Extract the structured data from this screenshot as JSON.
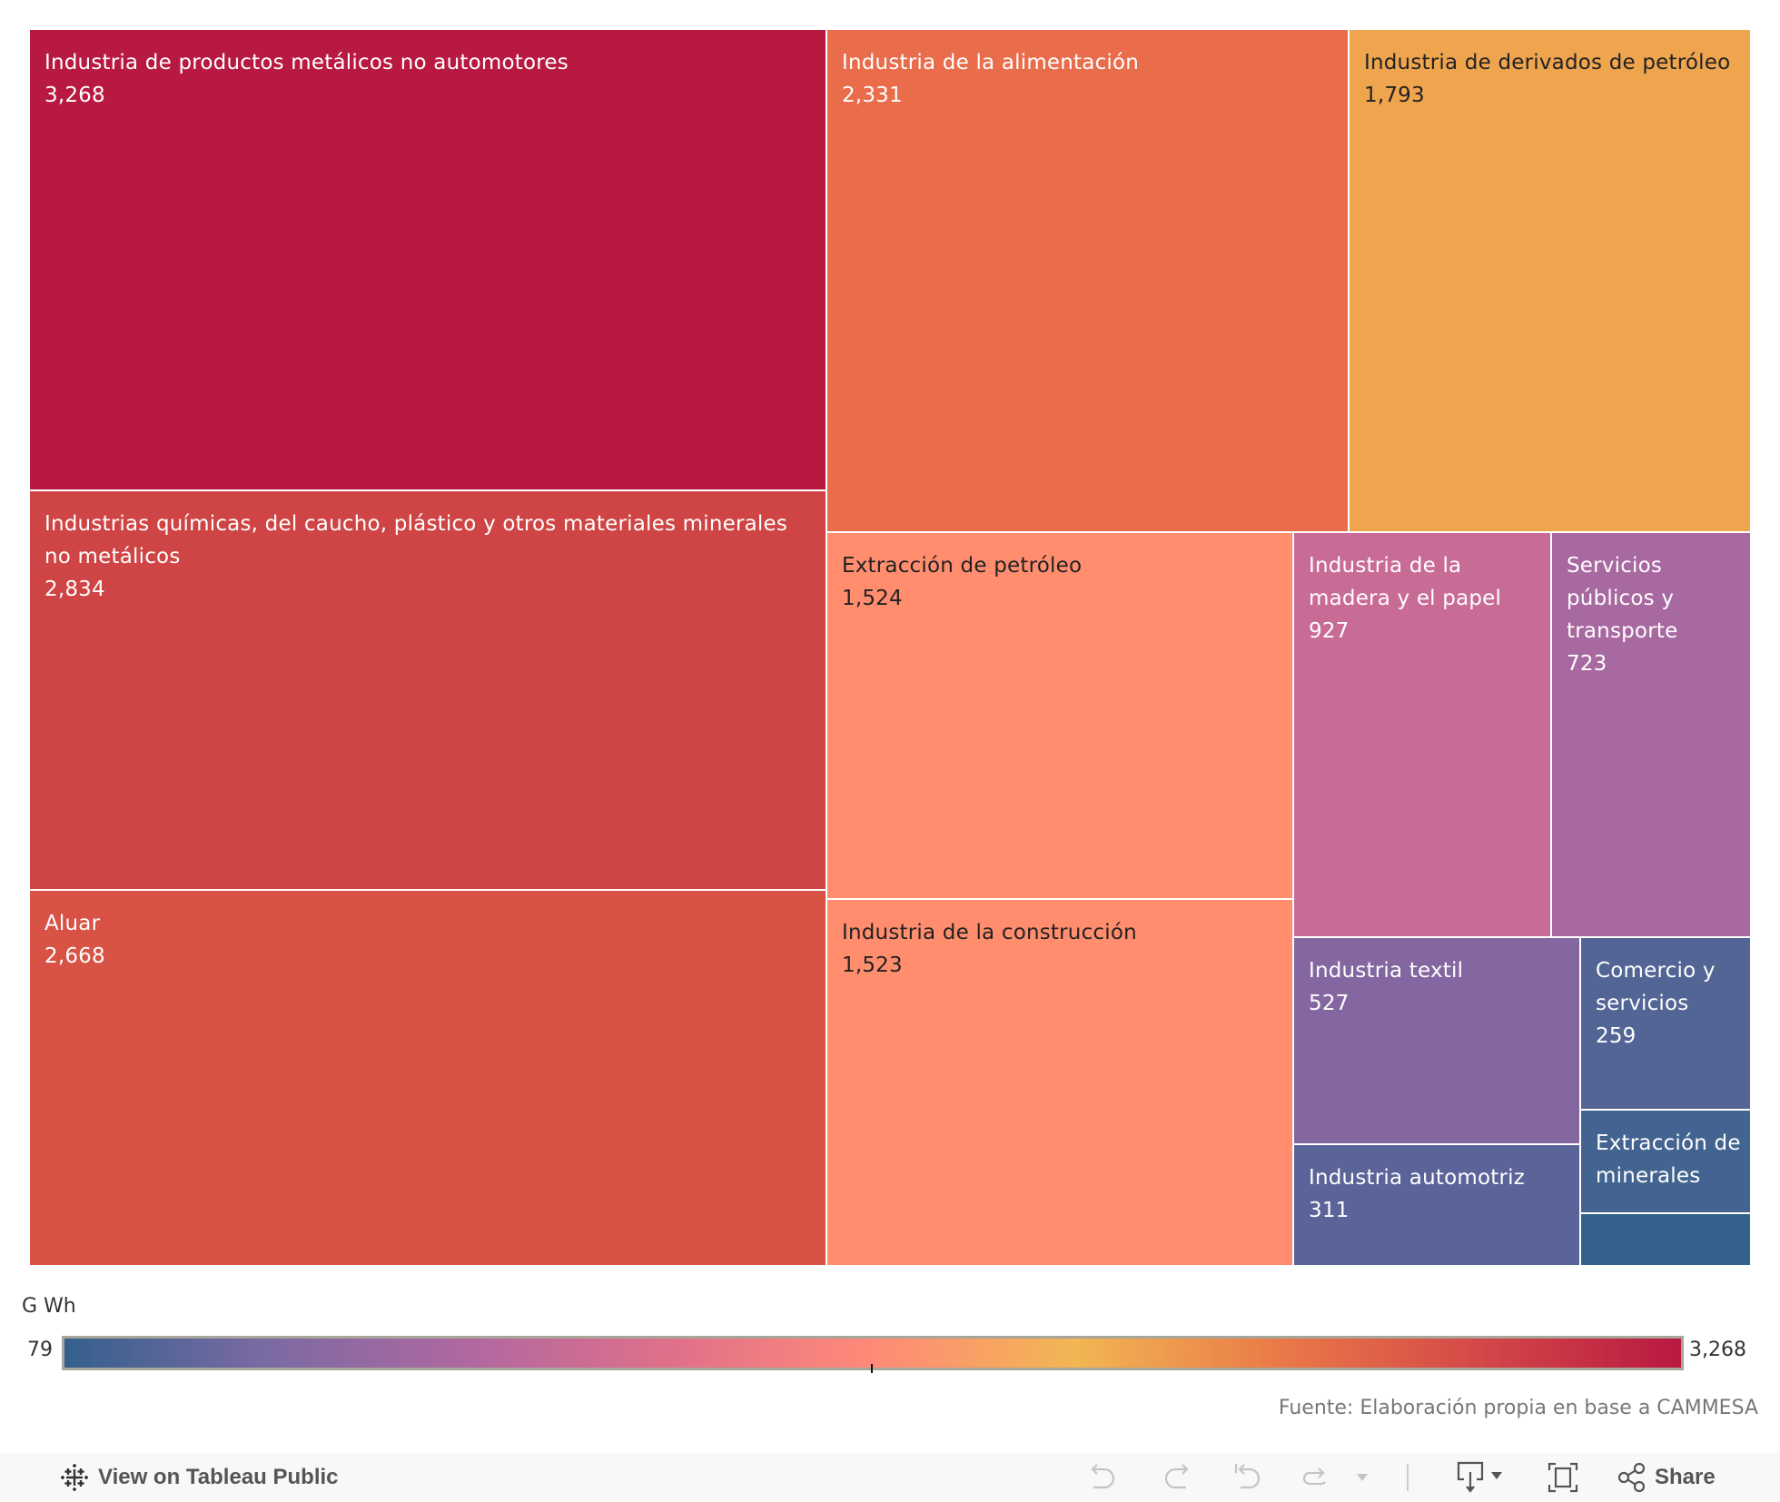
{
  "chart_data": {
    "type": "treemap",
    "title": "",
    "measure": "G Wh",
    "items": [
      {
        "label": "Industria de productos metálicos no automotores",
        "value": 3268,
        "display": "3,268",
        "color": "#b81941",
        "text_color": "#ffffff"
      },
      {
        "label": "Industrias químicas, del caucho, plástico y otros materiales minerales no metálicos",
        "value": 2834,
        "display": "2,834",
        "color": "#cf4444",
        "text_color": "#ffffff"
      },
      {
        "label": "Aluar",
        "value": 2668,
        "display": "2,668",
        "color": "#d85246",
        "text_color": "#ffffff"
      },
      {
        "label": "Industria de la alimentación",
        "value": 2331,
        "display": "2,331",
        "color": "#e96c4b",
        "text_color": "#ffffff"
      },
      {
        "label": "Industria de derivados de petróleo",
        "value": 1793,
        "display": "1,793",
        "color": "#efa44e",
        "text_color": "#222222"
      },
      {
        "label": "Extracción de petróleo",
        "value": 1524,
        "display": "1,524",
        "color": "#ff8d6e",
        "text_color": "#222222"
      },
      {
        "label": "Industria de la construcción",
        "value": 1523,
        "display": "1,523",
        "color": "#ff8d6e",
        "text_color": "#222222"
      },
      {
        "label": "Industria de la madera y el papel",
        "value": 927,
        "display": "927",
        "color": "#c96b97",
        "text_color": "#ffffff"
      },
      {
        "label": "Servicios públicos y transporte",
        "value": 723,
        "display": "723",
        "color": "#a868a0",
        "text_color": "#ffffff"
      },
      {
        "label": "Industria textil",
        "value": 527,
        "display": "527",
        "color": "#8467a1",
        "text_color": "#ffffff"
      },
      {
        "label": "Industria automotriz",
        "value": 311,
        "display": "311",
        "color": "#5b6499",
        "text_color": "#ffffff"
      },
      {
        "label": "Comercio y servicios",
        "value": 259,
        "display": "259",
        "color": "#526595",
        "text_color": "#ffffff"
      },
      {
        "label": "Extracción de minerales",
        "value": null,
        "display": "",
        "color": "#436490",
        "text_color": "#ffffff"
      },
      {
        "label": "",
        "value": 79,
        "display": "",
        "color": "#34608c",
        "text_color": "#ffffff"
      }
    ],
    "color_legend": {
      "title": "G Wh",
      "min": 79,
      "min_label": "79",
      "max": 3268,
      "max_label": "3,268",
      "gradient_stops": [
        "#34608c",
        "#7b6aa3",
        "#b068a0",
        "#e0708a",
        "#ff8a78",
        "#f2b653",
        "#ea7a48",
        "#d44848",
        "#b81941"
      ]
    }
  },
  "legend": {
    "title": "G Wh",
    "min_label": "79",
    "max_label": "3,268"
  },
  "source": "Fuente: Elaboración propia en base a CAMMESA",
  "toolbar": {
    "view_label": "View on Tableau Public",
    "share_label": "Share",
    "icons": [
      "tableau-logo-icon",
      "undo-icon",
      "redo-icon",
      "revert-icon",
      "refresh-icon",
      "dropdown-icon",
      "download-icon",
      "fullscreen-icon",
      "share-icon"
    ]
  }
}
